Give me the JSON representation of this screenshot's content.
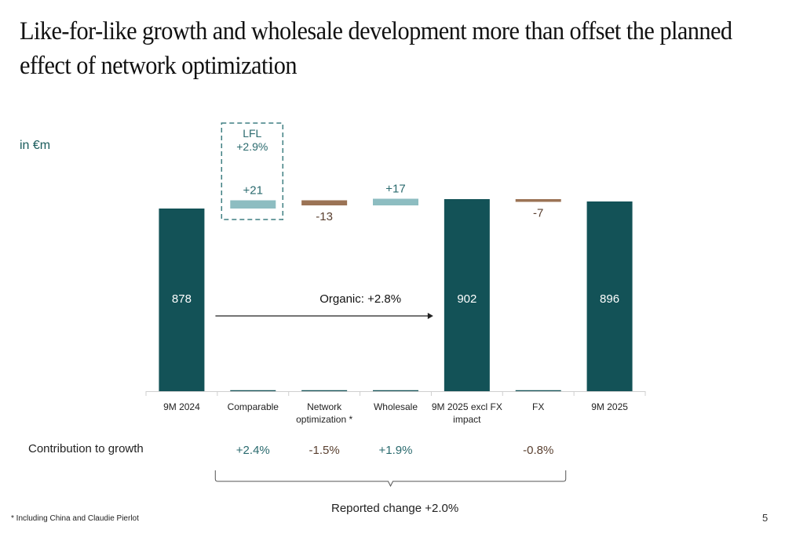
{
  "slide": {
    "title": "Like-for-like growth and wholesale development more than offset the planned effect of network optimization",
    "unit_label": "in €m",
    "contribution_label": "Contribution to growth",
    "reported_change": "Reported change +2.0%",
    "footnote": "* Including China and Claudie Pierlot",
    "page_number": "5"
  },
  "colors": {
    "total": "#135257",
    "positive": "#8dbdc1",
    "negative": "#9b7355",
    "positive_text": "#2a6a6e",
    "negative_text": "#5a4030",
    "total_label": "#ffffff"
  },
  "chart_data": {
    "type": "waterfall",
    "title": "",
    "xlabel": "",
    "ylabel": "in €m",
    "categories": [
      "9M 2024",
      "Comparable",
      "Network optimization *",
      "Wholesale",
      "9M 2025 excl FX impact",
      "FX",
      "9M 2025"
    ],
    "category_lines": [
      [
        "9M 2024"
      ],
      [
        "Comparable"
      ],
      [
        "Network",
        "optimization *"
      ],
      [
        "Wholesale"
      ],
      [
        "9M 2025 excl FX",
        "impact"
      ],
      [
        "FX"
      ],
      [
        "9M 2025"
      ]
    ],
    "values": [
      878,
      21,
      -13,
      17,
      902,
      -7,
      896
    ],
    "kinds": [
      "total",
      "delta",
      "delta",
      "delta",
      "total",
      "delta",
      "total"
    ],
    "data_labels": [
      "878",
      "+21",
      "-13",
      "+17",
      "902",
      "-7",
      "896"
    ],
    "contribution_to_growth": [
      "",
      "+2.4%",
      "-1.5%",
      "+1.9%",
      "",
      "-0.8%",
      ""
    ],
    "annotations": {
      "lfl_box": {
        "label": "LFL",
        "value": "+2.9%",
        "category": "Comparable"
      },
      "organic_arrow": {
        "label": "Organic: +2.8%",
        "from": "9M 2024",
        "to": "9M 2025 excl FX impact"
      },
      "bracket": {
        "from": "Comparable",
        "to": "FX",
        "label": "Reported change +2.0%"
      }
    },
    "grid": false,
    "legend": "none"
  }
}
